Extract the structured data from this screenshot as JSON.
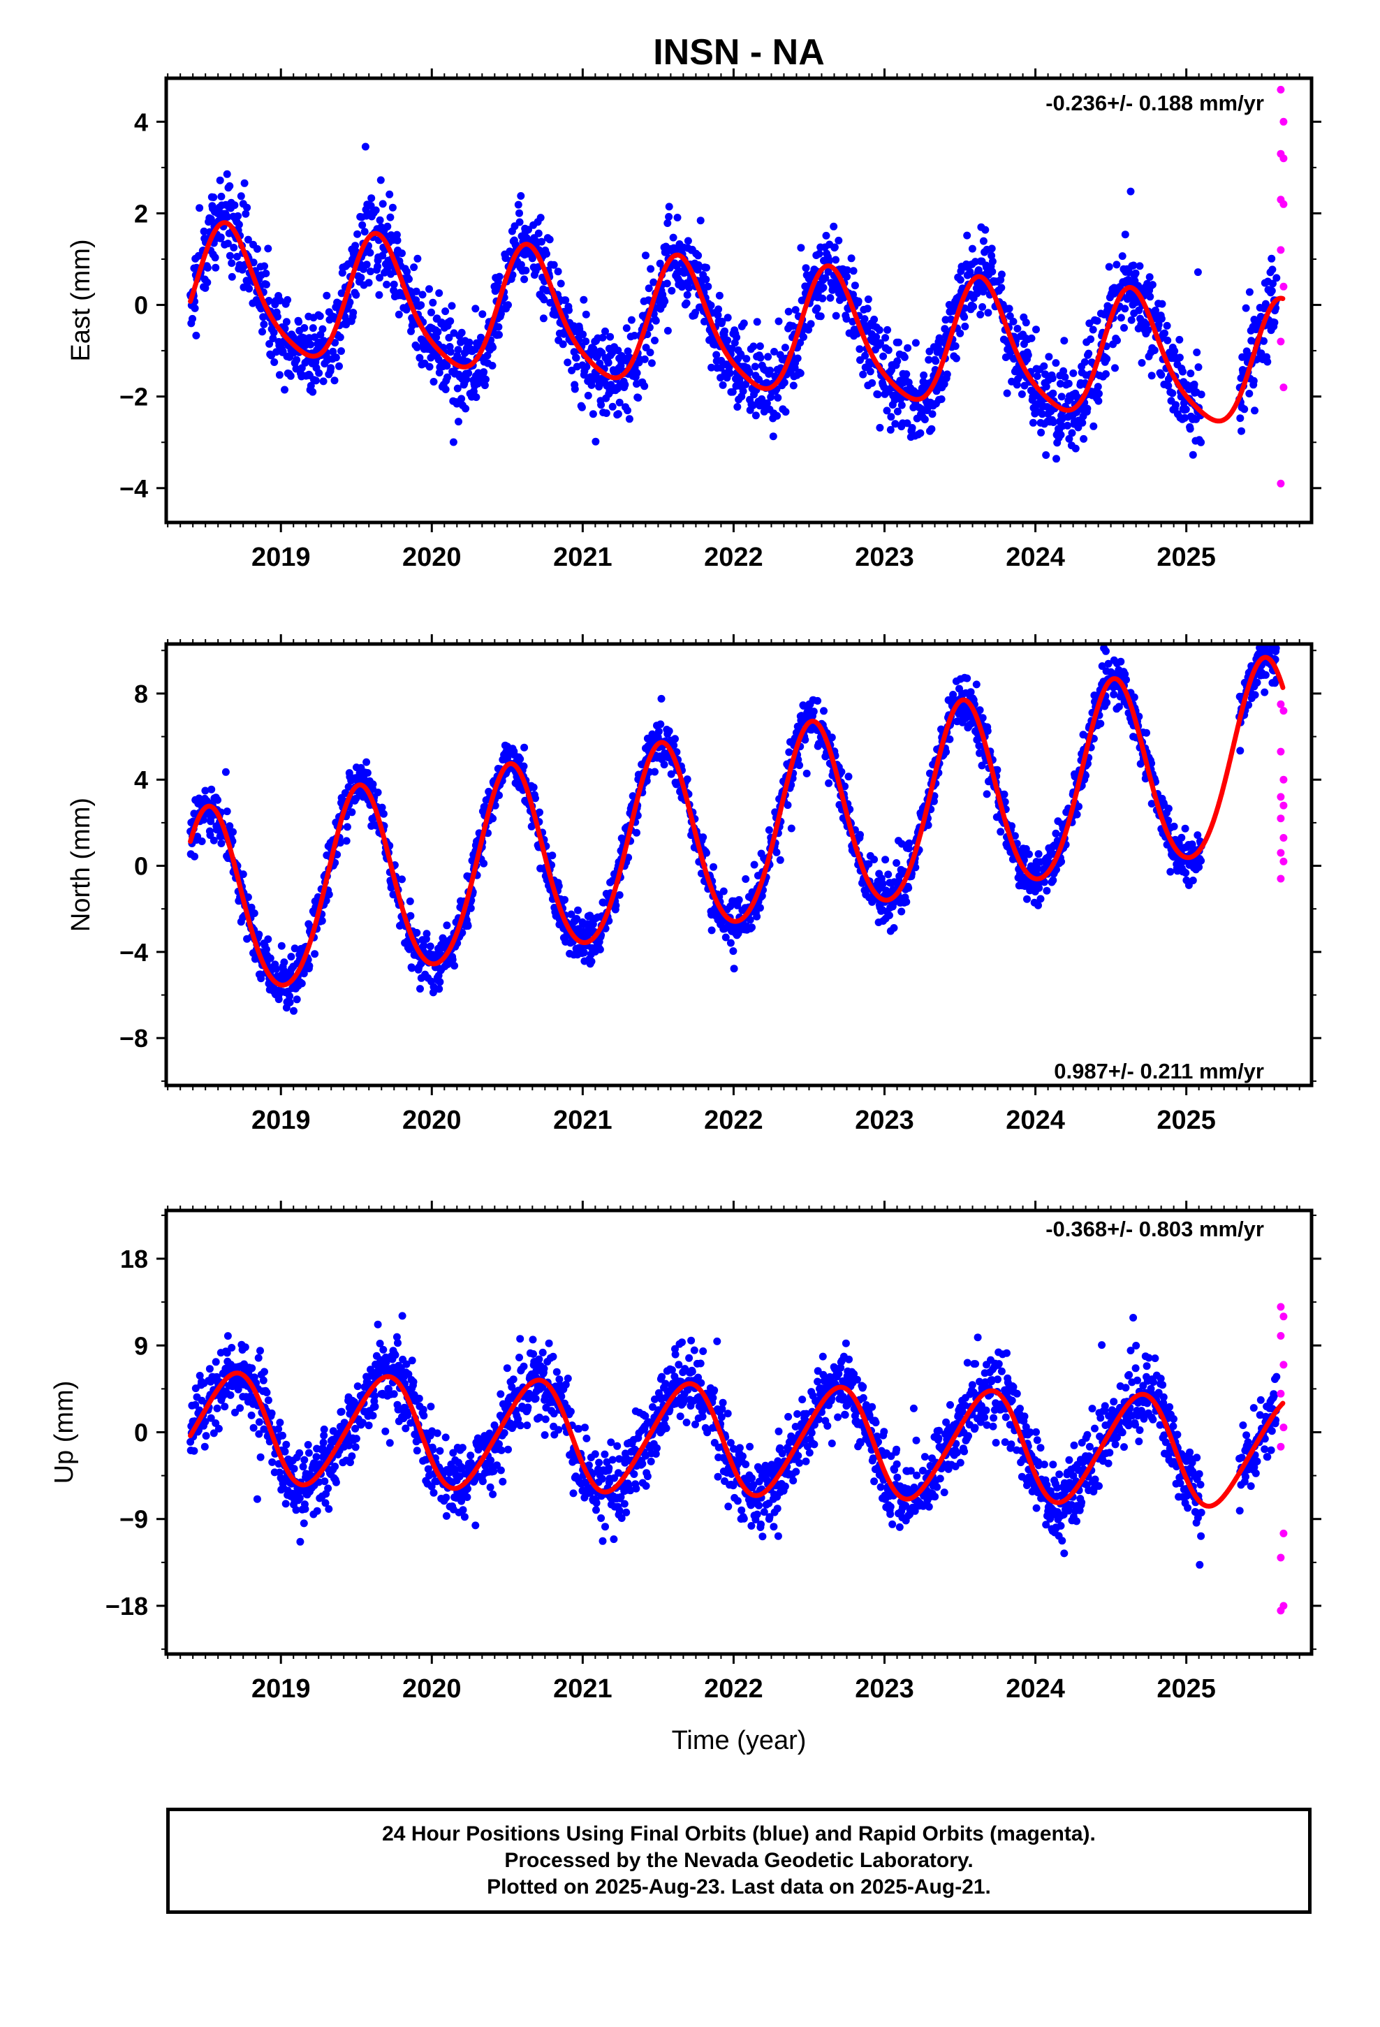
{
  "colors": {
    "final": "#0000ff",
    "rapid": "#ff00ff",
    "fit": "#ff0000"
  },
  "caption": {
    "line1": "24 Hour Positions Using Final Orbits (blue) and Rapid Orbits (magenta).",
    "line2": "Processed by the Nevada Geodetic Laboratory.",
    "line3": "Plotted on 2025-Aug-23. Last data on 2025-Aug-21."
  },
  "chart_data": [
    {
      "type": "scatter",
      "title": "INSN - NA",
      "ylabel": "East (mm)",
      "xlabel": "",
      "xlim": [
        2018.24,
        2025.83
      ],
      "ylim": [
        -4.75,
        4.95
      ],
      "xticks": [
        "2019",
        "2020",
        "2021",
        "2022",
        "2023",
        "2024",
        "2025"
      ],
      "yticks": [
        4,
        2,
        0,
        -2,
        -4
      ],
      "ytick_labels": [
        "4",
        "2",
        "0",
        "−2",
        "−4"
      ],
      "rate_label": "-0.236+/- 0.188 mm/yr",
      "fit": {
        "offset_2018_4": 0.28,
        "rate_mm_per_yr": -0.236,
        "annual_amp": 1.35,
        "annual_peak": 0.65,
        "semi_amp": 0.25,
        "semi_peak": 0.1
      },
      "scatter_noise": 0.9,
      "rapid_values": [
        4.7,
        4.0,
        3.3,
        3.2,
        2.3,
        2.2,
        1.2,
        0.4,
        -0.8,
        -1.8,
        -3.9
      ]
    },
    {
      "type": "scatter",
      "title": "",
      "ylabel": "North (mm)",
      "xlabel": "",
      "xlim": [
        2018.24,
        2025.83
      ],
      "ylim": [
        -10.2,
        10.3
      ],
      "xticks": [
        "2019",
        "2020",
        "2021",
        "2022",
        "2023",
        "2024",
        "2025"
      ],
      "yticks": [
        8,
        4,
        0,
        -4,
        -8
      ],
      "ytick_labels": [
        "8",
        "4",
        "0",
        "−4",
        "−8"
      ],
      "rate_label": "0.987+/- 0.211 mm/yr",
      "fit": {
        "offset_2018_4": -2.1,
        "rate_mm_per_yr": 0.987,
        "annual_amp": 4.4,
        "annual_peak": 0.52,
        "semi_amp": 0.35,
        "semi_peak": 0.02
      },
      "scatter_noise": 1.1,
      "rapid_values": [
        7.5,
        7.2,
        5.3,
        4.0,
        3.2,
        2.8,
        2.2,
        1.3,
        0.6,
        0.2,
        -0.6
      ]
    },
    {
      "type": "scatter",
      "title": "",
      "ylabel": "Up (mm)",
      "xlabel": "Time (year)",
      "xlim": [
        2018.24,
        2025.83
      ],
      "ylim": [
        -23,
        23
      ],
      "xticks": [
        "2019",
        "2020",
        "2021",
        "2022",
        "2023",
        "2024",
        "2025"
      ],
      "yticks": [
        18,
        9,
        0,
        -9,
        -18
      ],
      "ytick_labels": [
        "18",
        "9",
        "0",
        "−9",
        "−18"
      ],
      "rate_label": "-0.368+/- 0.803 mm/yr",
      "fit": {
        "offset_2018_4": 0.5,
        "rate_mm_per_yr": -0.368,
        "annual_amp": 5.6,
        "annual_peak": 0.68,
        "semi_amp": 0.6,
        "semi_peak": 0.3
      },
      "scatter_noise": 3.6,
      "rapid_values": [
        13.0,
        12.0,
        10.0,
        7.0,
        4.0,
        0.5,
        -1.5,
        -10.5,
        -13.0,
        -18.0,
        -18.5
      ]
    }
  ]
}
